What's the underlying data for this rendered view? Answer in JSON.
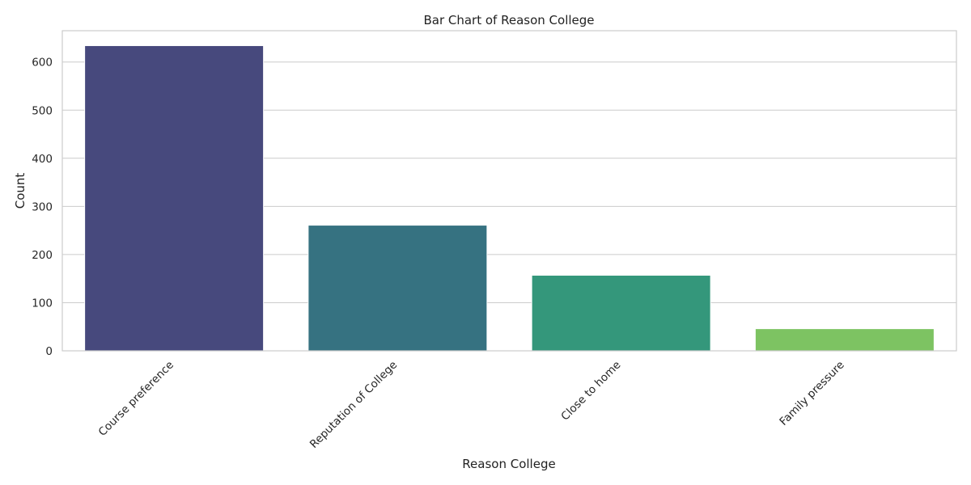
{
  "chart_data": {
    "type": "bar",
    "title": "Bar Chart of Reason College",
    "xlabel": "Reason College",
    "ylabel": "Count",
    "categories": [
      "Course preference",
      "Reputation of College",
      "Close to home",
      "Family pressure"
    ],
    "values": [
      634,
      261,
      157,
      46
    ],
    "colors": [
      "#47497d",
      "#367281",
      "#34977b",
      "#7dc362"
    ],
    "ylim": [
      0,
      665
    ],
    "yticks": [
      0,
      100,
      200,
      300,
      400,
      500,
      600
    ],
    "grid": true,
    "legend": false
  }
}
